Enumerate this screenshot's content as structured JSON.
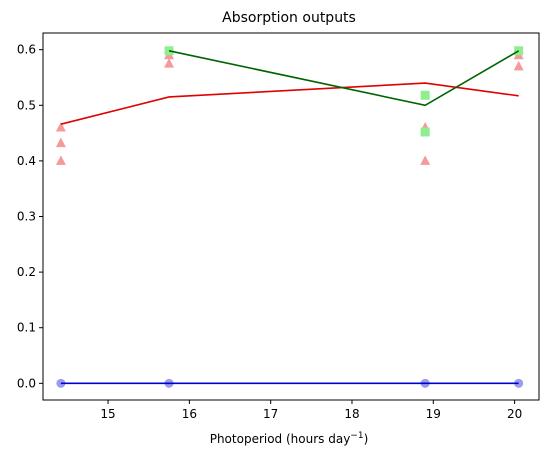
{
  "chart_data": {
    "type": "scatter",
    "title": "Absorption outputs",
    "xlabel": "Photoperiod (hours day",
    "xlabel_sup": "−1",
    "xlabel_end": ")",
    "ylabel": "",
    "xlim": [
      14.2,
      20.3
    ],
    "ylim": [
      -0.03,
      0.63
    ],
    "xticks": [
      15,
      16,
      17,
      18,
      19,
      20
    ],
    "yticks": [
      0.0,
      0.1,
      0.2,
      0.3,
      0.4,
      0.5,
      0.6
    ],
    "xtick_labels": [
      "15",
      "16",
      "17",
      "18",
      "19",
      "20"
    ],
    "ytick_labels": [
      "0.0",
      "0.1",
      "0.2",
      "0.3",
      "0.4",
      "0.5",
      "0.6"
    ],
    "grid": false,
    "legend": "none",
    "series": [
      {
        "kind": "points",
        "marker": "triangle",
        "color": "#f59a9a",
        "x": [
          14.42,
          14.42,
          14.42,
          15.75,
          15.75,
          18.9,
          18.9,
          20.05,
          20.05
        ],
        "y": [
          0.46,
          0.432,
          0.4,
          0.59,
          0.575,
          0.46,
          0.4,
          0.59,
          0.57
        ]
      },
      {
        "kind": "points",
        "marker": "square",
        "color": "#90ee90",
        "x": [
          15.75,
          18.9,
          18.9,
          20.05
        ],
        "y": [
          0.598,
          0.518,
          0.452,
          0.598
        ]
      },
      {
        "kind": "points",
        "marker": "circle",
        "color": "#9b9bf0",
        "x": [
          14.42,
          15.75,
          18.9,
          20.05
        ],
        "y": [
          0.0,
          0.0,
          0.0,
          0.0
        ]
      },
      {
        "kind": "line",
        "color": "#e00000",
        "x": [
          14.42,
          15.75,
          18.9,
          20.05
        ],
        "y": [
          0.466,
          0.515,
          0.54,
          0.517
        ]
      },
      {
        "kind": "line",
        "color": "#006400",
        "x": [
          15.75,
          18.9,
          20.05
        ],
        "y": [
          0.598,
          0.5,
          0.598
        ]
      },
      {
        "kind": "line",
        "color": "#0000cc",
        "x": [
          14.42,
          15.75,
          18.9,
          20.05
        ],
        "y": [
          0.0,
          0.0,
          0.0,
          0.0
        ]
      }
    ]
  }
}
